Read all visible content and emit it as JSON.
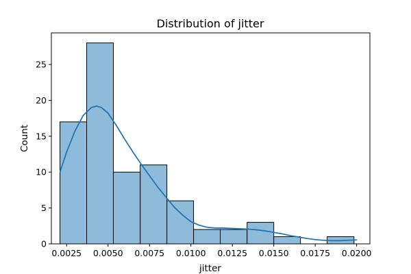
{
  "chart_data": {
    "type": "bar",
    "title": "Distribution of jitter",
    "xlabel": "jitter",
    "ylabel": "Count",
    "xlim": [
      0.00158,
      0.0208
    ],
    "ylim": [
      0,
      29.4
    ],
    "xticks": [
      0.0025,
      0.005,
      0.0075,
      0.01,
      0.0125,
      0.015,
      0.0175,
      0.02
    ],
    "xtick_labels": [
      "0.0025",
      "0.0050",
      "0.0075",
      "0.0100",
      "0.0125",
      "0.0150",
      "0.0175",
      "0.0200"
    ],
    "yticks": [
      0,
      5,
      10,
      15,
      20,
      25
    ],
    "ytick_labels": [
      "0",
      "5",
      "10",
      "15",
      "20",
      "25"
    ],
    "grid": false,
    "bins": [
      {
        "x0": 0.0021,
        "x1": 0.00371,
        "count": 17
      },
      {
        "x0": 0.00371,
        "x1": 0.00532,
        "count": 28
      },
      {
        "x0": 0.00532,
        "x1": 0.00694,
        "count": 10
      },
      {
        "x0": 0.00694,
        "x1": 0.00855,
        "count": 11
      },
      {
        "x0": 0.00855,
        "x1": 0.01016,
        "count": 6
      },
      {
        "x0": 0.01016,
        "x1": 0.01177,
        "count": 2
      },
      {
        "x0": 0.01177,
        "x1": 0.01339,
        "count": 2
      },
      {
        "x0": 0.01339,
        "x1": 0.015,
        "count": 3
      },
      {
        "x0": 0.015,
        "x1": 0.01661,
        "count": 1
      },
      {
        "x0": 0.01661,
        "x1": 0.01822,
        "count": 0
      },
      {
        "x0": 0.01822,
        "x1": 0.01984,
        "count": 1
      }
    ],
    "kde": {
      "x": [
        0.0021,
        0.0025,
        0.003,
        0.0035,
        0.004,
        0.0043,
        0.0046,
        0.005,
        0.0055,
        0.006,
        0.0065,
        0.007,
        0.0075,
        0.008,
        0.0085,
        0.009,
        0.0095,
        0.01,
        0.0105,
        0.011,
        0.0115,
        0.012,
        0.0125,
        0.013,
        0.0135,
        0.014,
        0.0145,
        0.015,
        0.0155,
        0.016,
        0.0165,
        0.017,
        0.0175,
        0.018,
        0.0185,
        0.019,
        0.0195,
        0.02
      ],
      "y": [
        10.0,
        12.8,
        15.7,
        17.9,
        19.0,
        19.2,
        19.0,
        18.2,
        16.5,
        14.6,
        12.8,
        11.1,
        9.5,
        7.9,
        6.5,
        5.1,
        4.0,
        3.1,
        2.6,
        2.3,
        2.2,
        2.2,
        2.15,
        2.1,
        2.05,
        1.95,
        1.8,
        1.6,
        1.4,
        1.15,
        0.95,
        0.75,
        0.6,
        0.5,
        0.45,
        0.45,
        0.5,
        0.55
      ]
    },
    "colors": {
      "bar_fill": "#8fbbda",
      "bar_edge": "#000000",
      "kde_line": "#1f77b4"
    }
  }
}
